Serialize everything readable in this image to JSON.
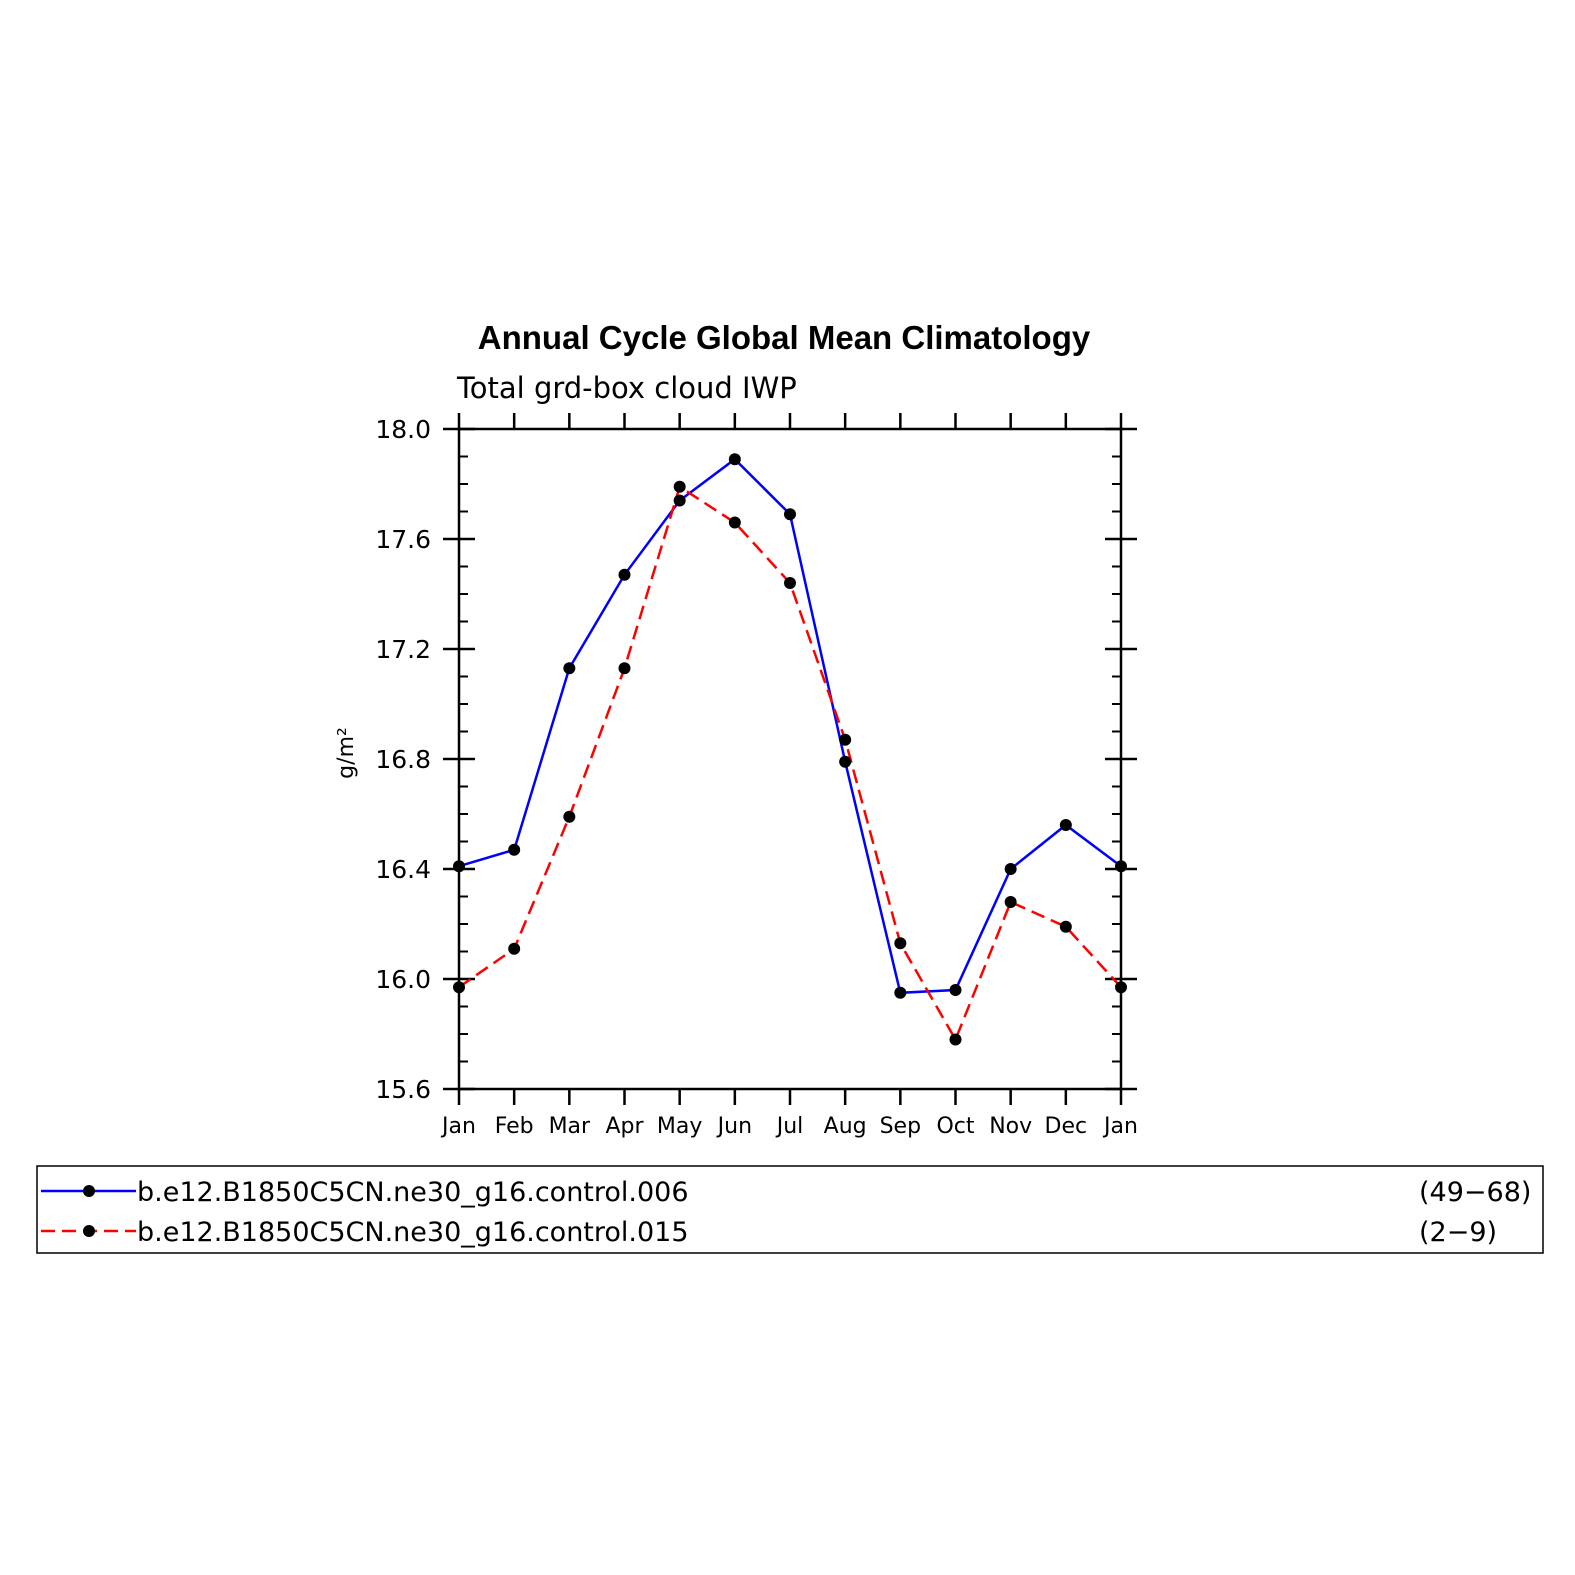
{
  "chart_data": {
    "type": "line",
    "title": "Annual Cycle Global Mean Climatology",
    "subtitle": "Total grd-box cloud IWP",
    "ylabel": "g/m²",
    "xlabel": "",
    "categories": [
      "Jan",
      "Feb",
      "Mar",
      "Apr",
      "May",
      "Jun",
      "Jul",
      "Aug",
      "Sep",
      "Oct",
      "Nov",
      "Dec",
      "Jan"
    ],
    "ylim": [
      15.6,
      18.0
    ],
    "yticks": [
      "15.6",
      "16.0",
      "16.4",
      "16.8",
      "17.2",
      "17.6",
      "18.0"
    ],
    "grid": false,
    "legend_placement": "bottom",
    "series": [
      {
        "name": "b.e12.B1850C5CN.ne30_g16.control.006",
        "years": "(49−68)",
        "color": "#0000ff",
        "dash": "solid",
        "values": [
          16.41,
          16.47,
          17.13,
          17.47,
          17.74,
          17.89,
          17.69,
          16.79,
          15.95,
          15.96,
          16.4,
          16.56,
          16.41
        ]
      },
      {
        "name": "b.e12.B1850C5CN.ne30_g16.control.015",
        "years": "(2−9)",
        "color": "#ff0000",
        "dash": "dashed",
        "values": [
          15.97,
          16.11,
          16.59,
          17.13,
          17.79,
          17.66,
          17.44,
          16.87,
          16.13,
          15.78,
          16.28,
          16.19,
          15.97
        ]
      }
    ]
  }
}
